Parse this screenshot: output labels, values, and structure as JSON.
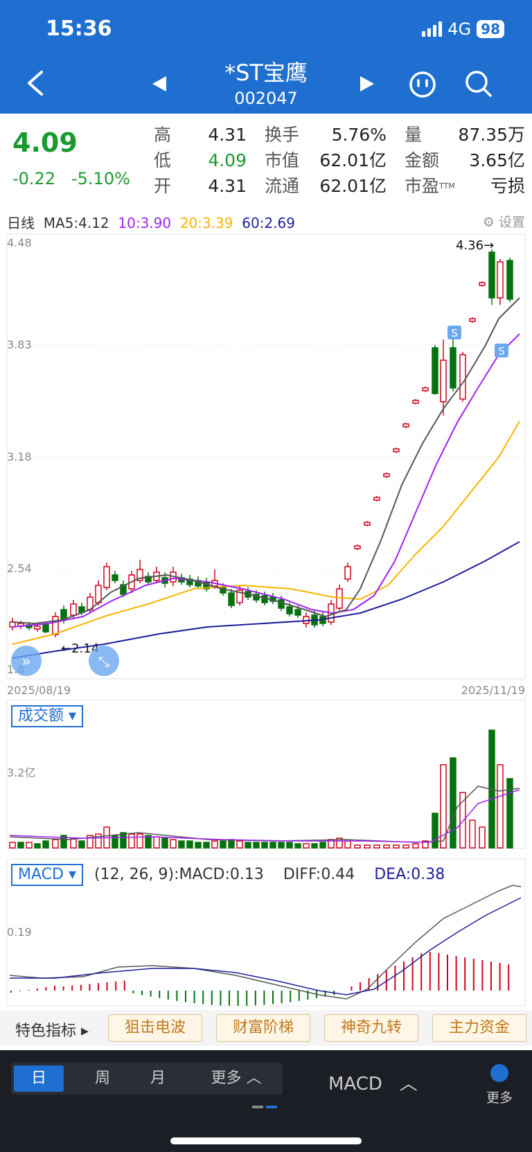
{
  "status": {
    "time": "15:36",
    "network": "4G",
    "battery": "98"
  },
  "header": {
    "title": "*ST宝鹰",
    "code": "002047"
  },
  "quote": {
    "price": "4.09",
    "change": "-0.22",
    "change_pct": "-5.10%",
    "cols": [
      [
        {
          "label": "高",
          "value": "4.31"
        },
        {
          "label": "低",
          "value": "4.09"
        },
        {
          "label": "开",
          "value": "4.31"
        }
      ],
      [
        {
          "label": "换手",
          "value": "5.76%"
        },
        {
          "label": "市值",
          "value": "62.01亿"
        },
        {
          "label": "流通",
          "value": "62.01亿"
        }
      ],
      [
        {
          "label": "量",
          "value": "87.35万"
        },
        {
          "label": "金额",
          "value": "3.65亿"
        },
        {
          "label": "市盈",
          "value": "亏损"
        }
      ]
    ],
    "pe_suffix": "TTM"
  },
  "ma": {
    "label": "日线",
    "ma5": "MA5:4.12",
    "ma10": "10:3.90",
    "ma20": "20:3.39",
    "ma60": "60:2.69",
    "settings": "设置"
  },
  "colors": {
    "ma5": "#555555",
    "ma10": "#a020f0",
    "ma20": "#f5b400",
    "ma60": "#1c1c9c",
    "up": "#d0021b",
    "down": "#06720f"
  },
  "kline": {
    "y_labels": [
      "4.48",
      "3.83",
      "3.18",
      "2.54",
      "1.8"
    ],
    "date_start": "2025/08/19",
    "date_end": "2025/11/19",
    "max_label": "4.36→",
    "min_label": "←2.14",
    "signal": "S"
  },
  "volume": {
    "button": "成交额",
    "y_label": "3.2亿"
  },
  "macd": {
    "button": "MACD",
    "params": "(12, 26, 9):MACD:0.13",
    "diff": "DIFF:0.44",
    "dea": "DEA:0.38",
    "y_label": "0.19"
  },
  "indicators": {
    "label": "特色指标",
    "items": [
      "狙击电波",
      "财富阶梯",
      "神奇九转",
      "主力资金"
    ]
  },
  "bottom": {
    "periods": [
      "日",
      "周",
      "月",
      "更多"
    ],
    "selected": "MACD",
    "more": "更多"
  }
}
